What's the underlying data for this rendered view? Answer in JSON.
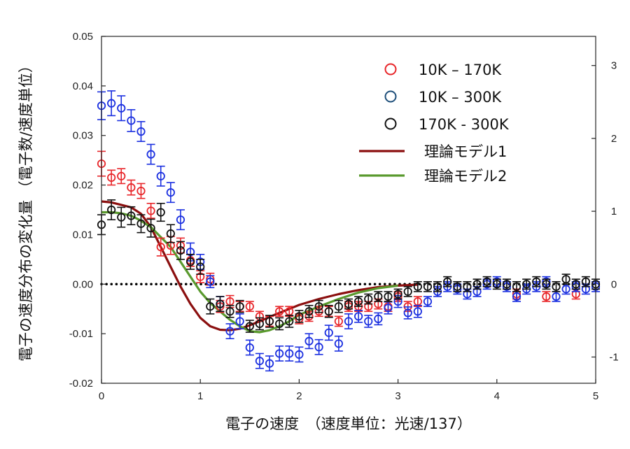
{
  "chart_data": {
    "type": "scatter",
    "title": "",
    "xlabel": "電子の速度　（速度単位：光速/137）",
    "ylabel": "電子の速度分布の変化量 （電子数/速度単位）",
    "xlim": [
      0,
      5
    ],
    "ylim": [
      -0.02,
      0.05
    ],
    "y2lim": [
      -1.36,
      3.4
    ],
    "x_ticks": [
      "0",
      "1",
      "2",
      "3",
      "4",
      "5"
    ],
    "y_ticks": [
      "-0.02",
      "-0.01",
      "0.00",
      "0.01",
      "0.02",
      "0.03",
      "0.04",
      "0.05"
    ],
    "y2_ticks": [
      "-1",
      "0",
      "1",
      "2",
      "3"
    ],
    "legend_position": "top-right",
    "zero_line": "dotted",
    "series": [
      {
        "name": "10K – 170K",
        "kind": "points",
        "color": "#e8262a",
        "points": [
          [
            0.0,
            0.0243,
            0.0025
          ],
          [
            0.1,
            0.0215,
            0.0015
          ],
          [
            0.2,
            0.0218,
            0.0015
          ],
          [
            0.3,
            0.0195,
            0.0015
          ],
          [
            0.4,
            0.0188,
            0.0015
          ],
          [
            0.5,
            0.0148,
            0.0015
          ],
          [
            0.6,
            0.0075,
            0.0018
          ],
          [
            0.7,
            0.0078,
            0.0018
          ],
          [
            0.8,
            0.0078,
            0.0015
          ],
          [
            0.9,
            0.0048,
            0.0012
          ],
          [
            1.0,
            0.0015,
            0.0012
          ],
          [
            1.1,
            0.001,
            0.0012
          ],
          [
            1.2,
            -0.0045,
            0.0012
          ],
          [
            1.3,
            -0.0035,
            0.0012
          ],
          [
            1.4,
            -0.0045,
            0.001
          ],
          [
            1.5,
            -0.0045,
            0.001
          ],
          [
            1.6,
            -0.0065,
            0.001
          ],
          [
            1.7,
            -0.0075,
            0.001
          ],
          [
            1.8,
            -0.0055,
            0.001
          ],
          [
            1.9,
            -0.0055,
            0.001
          ],
          [
            2.0,
            -0.007,
            0.001
          ],
          [
            2.1,
            -0.0065,
            0.001
          ],
          [
            2.2,
            -0.0055,
            0.001
          ],
          [
            2.3,
            -0.0055,
            0.001
          ],
          [
            2.4,
            -0.0075,
            0.001
          ],
          [
            2.5,
            -0.0045,
            0.001
          ],
          [
            2.6,
            -0.0045,
            0.001
          ],
          [
            2.7,
            -0.0045,
            0.001
          ],
          [
            2.8,
            -0.004,
            0.001
          ],
          [
            2.9,
            -0.0045,
            0.001
          ],
          [
            3.0,
            -0.0025,
            0.001
          ],
          [
            3.1,
            -0.0045,
            0.001
          ],
          [
            3.2,
            -0.0035,
            0.001
          ],
          [
            4.2,
            -0.002,
            0.001
          ],
          [
            4.5,
            -0.0025,
            0.001
          ],
          [
            4.8,
            -0.002,
            0.001
          ]
        ]
      },
      {
        "name": "10K – 300K",
        "kind": "points",
        "color": "#1a2fe0",
        "points": [
          [
            0.0,
            0.036,
            0.0028
          ],
          [
            0.1,
            0.0365,
            0.0025
          ],
          [
            0.2,
            0.0355,
            0.0025
          ],
          [
            0.3,
            0.033,
            0.0022
          ],
          [
            0.4,
            0.0308,
            0.002
          ],
          [
            0.5,
            0.0262,
            0.002
          ],
          [
            0.6,
            0.0218,
            0.002
          ],
          [
            0.7,
            0.0185,
            0.002
          ],
          [
            0.8,
            0.013,
            0.002
          ],
          [
            0.9,
            0.0065,
            0.0018
          ],
          [
            1.0,
            0.0045,
            0.0015
          ],
          [
            1.1,
            0.0005,
            0.0012
          ],
          [
            1.2,
            -0.004,
            0.0015
          ],
          [
            1.3,
            -0.0095,
            0.0015
          ],
          [
            1.4,
            -0.0075,
            0.0015
          ],
          [
            1.5,
            -0.0128,
            0.0015
          ],
          [
            1.6,
            -0.0155,
            0.0015
          ],
          [
            1.7,
            -0.016,
            0.0015
          ],
          [
            1.8,
            -0.014,
            0.0015
          ],
          [
            1.9,
            -0.014,
            0.0015
          ],
          [
            2.0,
            -0.0142,
            0.0015
          ],
          [
            2.1,
            -0.0115,
            0.0015
          ],
          [
            2.2,
            -0.0127,
            0.0015
          ],
          [
            2.3,
            -0.0098,
            0.0015
          ],
          [
            2.4,
            -0.012,
            0.0015
          ],
          [
            2.5,
            -0.0075,
            0.0015
          ],
          [
            2.6,
            -0.0065,
            0.0012
          ],
          [
            2.7,
            -0.0075,
            0.0012
          ],
          [
            2.8,
            -0.007,
            0.0012
          ],
          [
            2.9,
            -0.0048,
            0.0012
          ],
          [
            3.0,
            -0.0035,
            0.0012
          ],
          [
            3.1,
            -0.0058,
            0.0012
          ],
          [
            3.2,
            -0.0055,
            0.0012
          ],
          [
            3.3,
            -0.0035,
            0.001
          ],
          [
            3.4,
            -0.0015,
            0.001
          ],
          [
            3.5,
            -0.0005,
            0.001
          ],
          [
            3.6,
            -0.001,
            0.001
          ],
          [
            3.7,
            -0.002,
            0.001
          ],
          [
            3.8,
            -0.0015,
            0.001
          ],
          [
            3.9,
            0.0,
            0.001
          ],
          [
            4.0,
            0.0005,
            0.001
          ],
          [
            4.1,
            -0.0005,
            0.001
          ],
          [
            4.2,
            -0.0025,
            0.001
          ],
          [
            4.3,
            -0.001,
            0.001
          ],
          [
            4.4,
            -0.0005,
            0.001
          ],
          [
            4.5,
            0.0005,
            0.001
          ],
          [
            4.6,
            -0.0025,
            0.001
          ],
          [
            4.7,
            -0.001,
            0.001
          ],
          [
            4.8,
            -0.0005,
            0.001
          ],
          [
            4.9,
            -0.001,
            0.001
          ],
          [
            5.0,
            -0.0005,
            0.001
          ]
        ]
      },
      {
        "name": "170K - 300K",
        "kind": "points",
        "color": "#111111",
        "points": [
          [
            0.0,
            0.012,
            0.002
          ],
          [
            0.1,
            0.015,
            0.002
          ],
          [
            0.2,
            0.0135,
            0.002
          ],
          [
            0.3,
            0.0138,
            0.0018
          ],
          [
            0.4,
            0.0122,
            0.0018
          ],
          [
            0.5,
            0.0113,
            0.0018
          ],
          [
            0.6,
            0.0145,
            0.0018
          ],
          [
            0.7,
            0.0102,
            0.0018
          ],
          [
            0.8,
            0.0068,
            0.0018
          ],
          [
            0.9,
            0.0045,
            0.0015
          ],
          [
            1.0,
            0.0035,
            0.0015
          ],
          [
            1.1,
            -0.0045,
            0.0015
          ],
          [
            1.2,
            -0.004,
            0.0015
          ],
          [
            1.3,
            -0.0055,
            0.0012
          ],
          [
            1.4,
            -0.0045,
            0.0012
          ],
          [
            1.5,
            -0.0085,
            0.0012
          ],
          [
            1.6,
            -0.008,
            0.0012
          ],
          [
            1.7,
            -0.0075,
            0.0012
          ],
          [
            1.8,
            -0.008,
            0.0012
          ],
          [
            1.9,
            -0.0075,
            0.0012
          ],
          [
            2.0,
            -0.0065,
            0.0012
          ],
          [
            2.1,
            -0.0055,
            0.0012
          ],
          [
            2.2,
            -0.0045,
            0.0012
          ],
          [
            2.3,
            -0.0055,
            0.0012
          ],
          [
            2.4,
            -0.0045,
            0.0012
          ],
          [
            2.5,
            -0.004,
            0.001
          ],
          [
            2.6,
            -0.0035,
            0.001
          ],
          [
            2.7,
            -0.003,
            0.001
          ],
          [
            2.8,
            -0.0025,
            0.001
          ],
          [
            2.9,
            -0.0025,
            0.001
          ],
          [
            3.0,
            -0.002,
            0.001
          ],
          [
            3.1,
            -0.0015,
            0.001
          ],
          [
            3.2,
            -0.0005,
            0.001
          ],
          [
            3.3,
            -0.0005,
            0.001
          ],
          [
            3.4,
            -0.0005,
            0.001
          ],
          [
            3.5,
            0.0005,
            0.001
          ],
          [
            3.6,
            -0.0005,
            0.001
          ],
          [
            3.7,
            -0.0005,
            0.001
          ],
          [
            3.8,
            0.0,
            0.001
          ],
          [
            3.9,
            0.0005,
            0.001
          ],
          [
            4.0,
            0.0,
            0.001
          ],
          [
            4.1,
            0.0,
            0.001
          ],
          [
            4.2,
            -0.0005,
            0.001
          ],
          [
            4.3,
            0.0,
            0.001
          ],
          [
            4.4,
            0.0005,
            0.001
          ],
          [
            4.5,
            0.0,
            0.001
          ],
          [
            4.6,
            -0.0005,
            0.001
          ],
          [
            4.7,
            0.001,
            0.001
          ],
          [
            4.8,
            0.0,
            0.001
          ],
          [
            4.9,
            0.0005,
            0.001
          ],
          [
            5.0,
            0.0,
            0.001
          ]
        ]
      },
      {
        "name": "理論モデル1",
        "kind": "line",
        "color": "#8b0f0f",
        "points": [
          [
            0.0,
            0.0167
          ],
          [
            0.1,
            0.0165
          ],
          [
            0.2,
            0.016
          ],
          [
            0.3,
            0.0155
          ],
          [
            0.4,
            0.0142
          ],
          [
            0.5,
            0.0115
          ],
          [
            0.6,
            0.0075
          ],
          [
            0.7,
            0.0035
          ],
          [
            0.8,
            -0.0005
          ],
          [
            0.9,
            -0.004
          ],
          [
            1.0,
            -0.0068
          ],
          [
            1.1,
            -0.0085
          ],
          [
            1.2,
            -0.0092
          ],
          [
            1.3,
            -0.0093
          ],
          [
            1.4,
            -0.009
          ],
          [
            1.5,
            -0.0083
          ],
          [
            1.6,
            -0.0075
          ],
          [
            1.7,
            -0.0066
          ],
          [
            1.8,
            -0.0058
          ],
          [
            1.9,
            -0.005
          ],
          [
            2.0,
            -0.0042
          ],
          [
            2.2,
            -0.003
          ],
          [
            2.4,
            -0.002
          ],
          [
            2.6,
            -0.0012
          ],
          [
            2.8,
            -0.0006
          ],
          [
            3.0,
            -0.0003
          ],
          [
            3.2,
            -0.0001
          ]
        ]
      },
      {
        "name": "理論モデル2",
        "kind": "line",
        "color": "#5a9a2e",
        "points": [
          [
            0.0,
            0.0145
          ],
          [
            0.1,
            0.0145
          ],
          [
            0.2,
            0.0143
          ],
          [
            0.3,
            0.0138
          ],
          [
            0.4,
            0.0128
          ],
          [
            0.5,
            0.0115
          ],
          [
            0.6,
            0.0095
          ],
          [
            0.7,
            0.0075
          ],
          [
            0.8,
            0.0045
          ],
          [
            0.9,
            0.0015
          ],
          [
            1.0,
            -0.0015
          ],
          [
            1.1,
            -0.0038
          ],
          [
            1.2,
            -0.0055
          ],
          [
            1.3,
            -0.0072
          ],
          [
            1.4,
            -0.0085
          ],
          [
            1.5,
            -0.0095
          ],
          [
            1.6,
            -0.0097
          ],
          [
            1.7,
            -0.0093
          ],
          [
            1.8,
            -0.0085
          ],
          [
            1.9,
            -0.0075
          ],
          [
            2.0,
            -0.0062
          ],
          [
            2.2,
            -0.0045
          ],
          [
            2.4,
            -0.003
          ],
          [
            2.6,
            -0.0017
          ],
          [
            2.8,
            -0.0008
          ],
          [
            3.0,
            -0.0003
          ]
        ]
      }
    ]
  }
}
